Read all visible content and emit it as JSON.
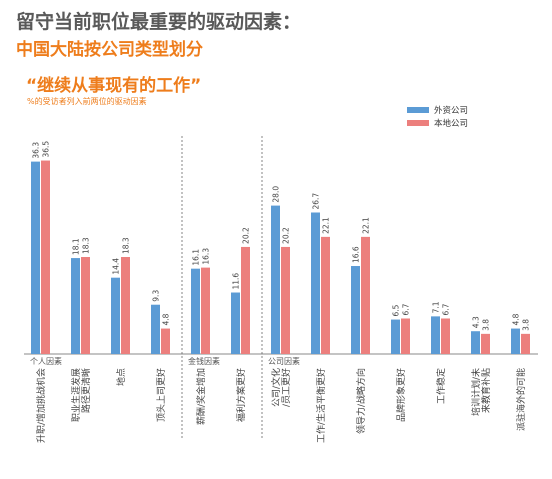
{
  "header": {
    "title": "留守当前职位最重要的驱动因素：",
    "subtitle": "中国大陆按公司类型划分"
  },
  "chart_data": {
    "type": "bar",
    "title": "“继续从事现有的工作”",
    "note": "%的受访者列入前两位的驱动因素",
    "ylim": [
      0,
      40
    ],
    "legend_position": "top-right",
    "series": [
      {
        "name": "外资公司",
        "color": "#5b9bd5"
      },
      {
        "name": "本地公司",
        "color": "#ec7f7d"
      }
    ],
    "groups": [
      {
        "label": "个人因素",
        "categories": [
          {
            "label": "升职/增加挑战机会",
            "values": [
              36.3,
              36.5
            ]
          },
          {
            "label": "职业生涯发展路径更清晰",
            "values": [
              18.1,
              18.3
            ]
          },
          {
            "label": "地点",
            "values": [
              14.4,
              18.3
            ]
          },
          {
            "label": "顶头上司更好",
            "values": [
              9.3,
              4.8
            ]
          }
        ]
      },
      {
        "label": "金钱因素",
        "categories": [
          {
            "label": "薪酬/奖金增加",
            "values": [
              16.1,
              16.3
            ]
          },
          {
            "label": "福利方案更好",
            "values": [
              11.6,
              20.2
            ]
          }
        ]
      },
      {
        "label": "公司因素",
        "categories": [
          {
            "label": "公司/文化/员工更好",
            "values": [
              28.0,
              20.2
            ]
          },
          {
            "label": "工作/生活平衡更好",
            "values": [
              26.7,
              22.1
            ]
          },
          {
            "label": "领导力/战略方向",
            "values": [
              16.6,
              22.1
            ]
          },
          {
            "label": "品牌形象更好",
            "values": [
              6.5,
              6.7
            ]
          },
          {
            "label": "工作稳定",
            "values": [
              7.1,
              6.7
            ]
          },
          {
            "label": "培训计划/未来教育补贴",
            "values": [
              4.3,
              3.8
            ]
          },
          {
            "label": "派驻海外的可能",
            "values": [
              4.8,
              3.8
            ]
          }
        ]
      }
    ]
  }
}
